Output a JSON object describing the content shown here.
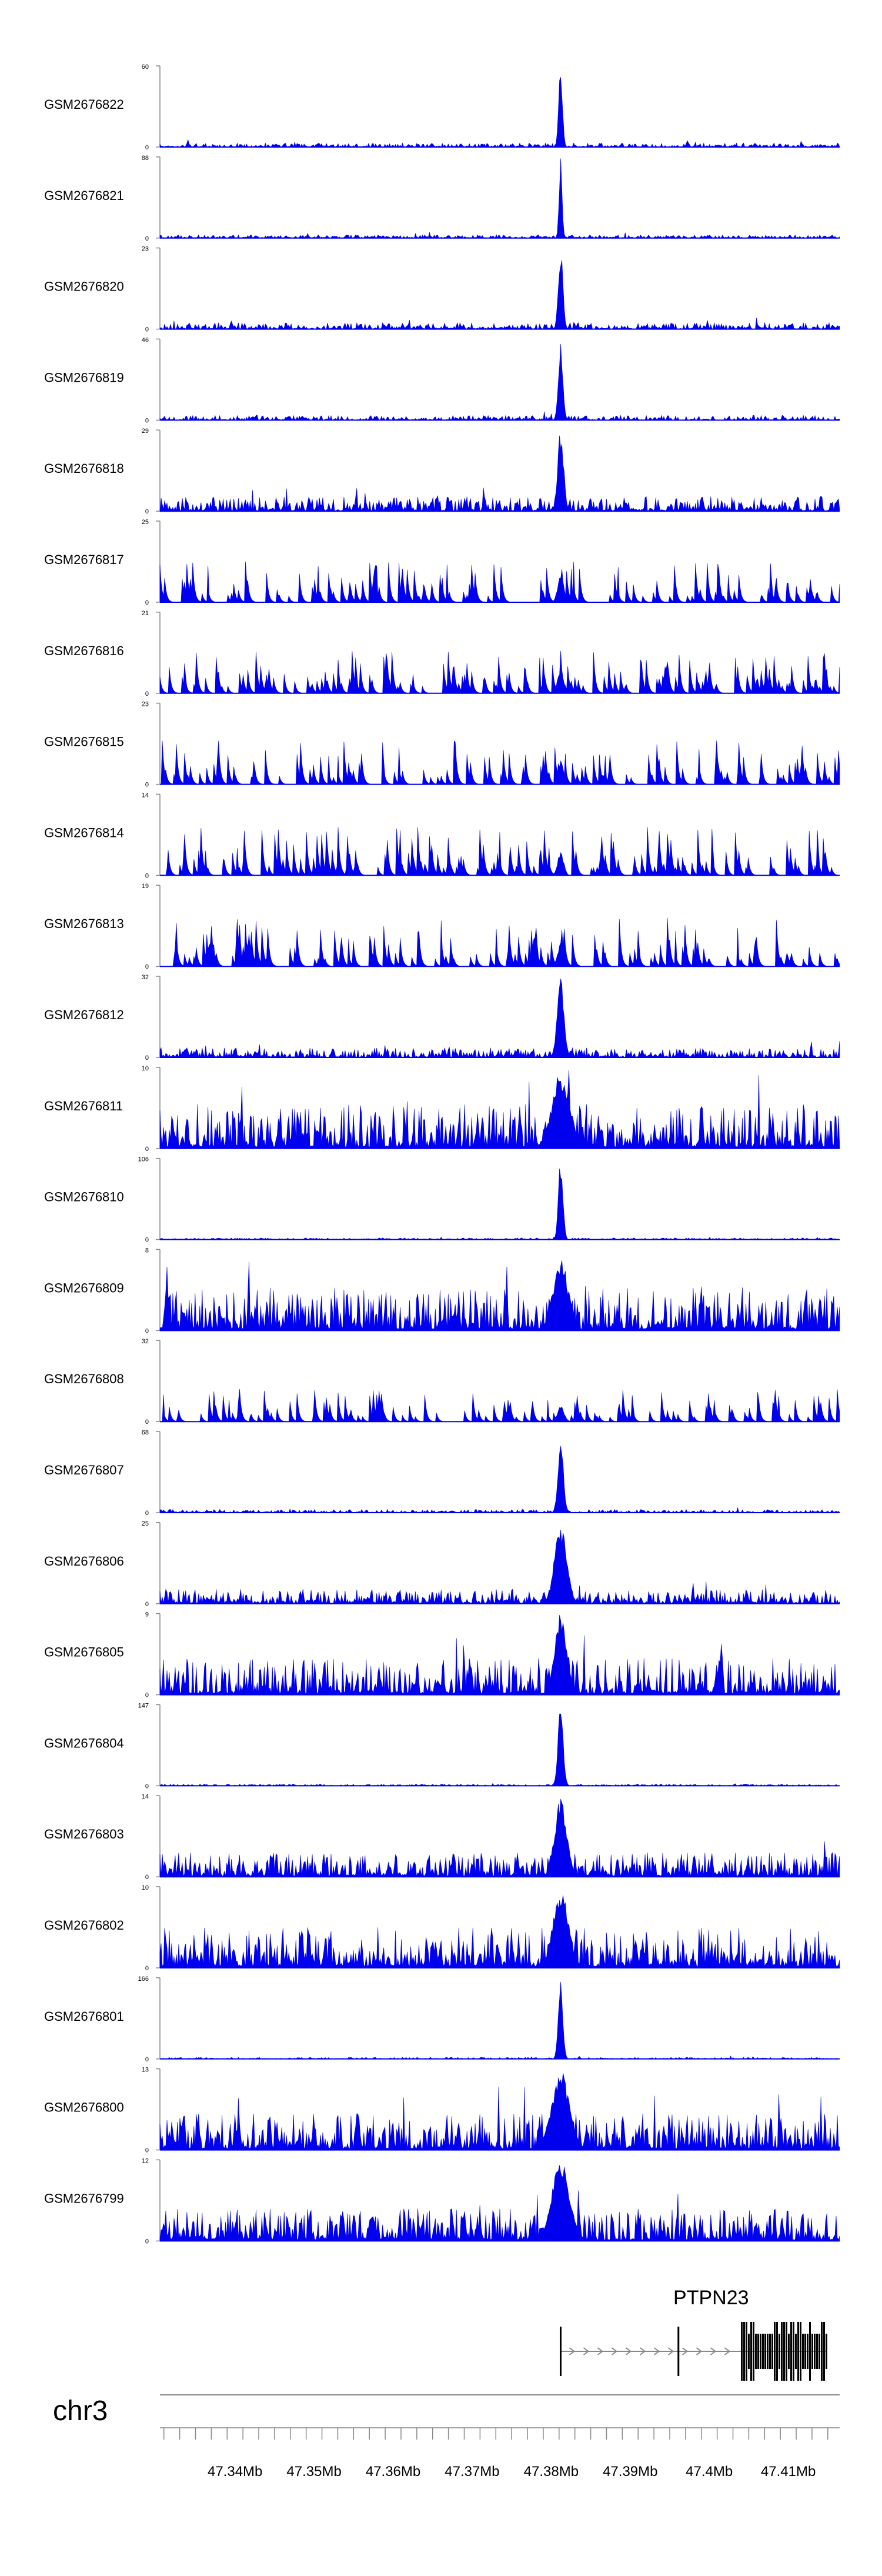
{
  "chart_data": {
    "type": "area",
    "title": "",
    "chromosome": "chr3",
    "color": "#0000ee",
    "x_axis": {
      "unit": "Mb",
      "range": [
        47.3305,
        47.4165
      ],
      "ticks": [
        {
          "v": 47.34,
          "label": "47.34Mb"
        },
        {
          "v": 47.35,
          "label": "47.35Mb"
        },
        {
          "v": 47.36,
          "label": "47.36Mb"
        },
        {
          "v": 47.37,
          "label": "47.37Mb"
        },
        {
          "v": 47.38,
          "label": "47.38Mb"
        },
        {
          "v": 47.39,
          "label": "47.39Mb"
        },
        {
          "v": 47.4,
          "label": "47.4Mb"
        },
        {
          "v": 47.41,
          "label": "47.41Mb"
        }
      ]
    },
    "gene": {
      "name": "PTPN23",
      "strand": "+",
      "start": 47.3812,
      "end": 47.4148,
      "exons": [
        [
          47.3812,
          47.3814
        ],
        [
          47.3961,
          47.3963
        ],
        [
          47.404,
          47.4148
        ]
      ]
    },
    "peak_center": 47.3812,
    "series": [
      {
        "name": "GSM2676822",
        "ymax": 60,
        "ymin_label": "0",
        "background": 0.05,
        "peak": 1.0,
        "peak_width": 0.25,
        "sparse": false,
        "seed": 22
      },
      {
        "name": "GSM2676821",
        "ymax": 88,
        "ymin_label": "0",
        "background": 0.04,
        "peak": 1.0,
        "peak_width": 0.2,
        "sparse": false,
        "seed": 21
      },
      {
        "name": "GSM2676820",
        "ymax": 23,
        "ymin_label": "0",
        "background": 0.08,
        "peak": 1.0,
        "peak_width": 0.3,
        "sparse": false,
        "seed": 20
      },
      {
        "name": "GSM2676819",
        "ymax": 46,
        "ymin_label": "0",
        "background": 0.06,
        "peak": 1.0,
        "peak_width": 0.3,
        "sparse": false,
        "seed": 19
      },
      {
        "name": "GSM2676818",
        "ymax": 29,
        "ymin_label": "0",
        "background": 0.18,
        "peak": 1.0,
        "peak_width": 0.4,
        "sparse": false,
        "seed": 18
      },
      {
        "name": "GSM2676817",
        "ymax": 25,
        "ymin_label": "0",
        "background": 0.5,
        "peak": 0.35,
        "peak_width": 0.4,
        "sparse": true,
        "seed": 17
      },
      {
        "name": "GSM2676816",
        "ymax": 21,
        "ymin_label": "0",
        "background": 0.55,
        "peak": 0.3,
        "peak_width": 0.4,
        "sparse": true,
        "seed": 16
      },
      {
        "name": "GSM2676815",
        "ymax": 23,
        "ymin_label": "0",
        "background": 0.55,
        "peak": 0.3,
        "peak_width": 0.4,
        "sparse": true,
        "seed": 15
      },
      {
        "name": "GSM2676814",
        "ymax": 14,
        "ymin_label": "0",
        "background": 0.6,
        "peak": 0.3,
        "peak_width": 0.4,
        "sparse": true,
        "seed": 14
      },
      {
        "name": "GSM2676813",
        "ymax": 19,
        "ymin_label": "0",
        "background": 0.6,
        "peak": 0.3,
        "peak_width": 0.4,
        "sparse": true,
        "seed": 13
      },
      {
        "name": "GSM2676812",
        "ymax": 32,
        "ymin_label": "0",
        "background": 0.12,
        "peak": 1.0,
        "peak_width": 0.45,
        "sparse": false,
        "seed": 12
      },
      {
        "name": "GSM2676811",
        "ymax": 10,
        "ymin_label": "0",
        "background": 0.55,
        "peak": 0.95,
        "peak_width": 1.2,
        "sparse": false,
        "seed": 11
      },
      {
        "name": "GSM2676810",
        "ymax": 106,
        "ymin_label": "0",
        "background": 0.02,
        "peak": 1.0,
        "peak_width": 0.3,
        "sparse": false,
        "seed": 10
      },
      {
        "name": "GSM2676809",
        "ymax": 8,
        "ymin_label": "0",
        "background": 0.55,
        "peak": 0.9,
        "peak_width": 1.0,
        "sparse": false,
        "seed": 9
      },
      {
        "name": "GSM2676808",
        "ymax": 32,
        "ymin_label": "0",
        "background": 0.4,
        "peak": 0.2,
        "peak_width": 0.4,
        "sparse": true,
        "seed": 8
      },
      {
        "name": "GSM2676807",
        "ymax": 68,
        "ymin_label": "0",
        "background": 0.04,
        "peak": 1.0,
        "peak_width": 0.35,
        "sparse": false,
        "seed": 7
      },
      {
        "name": "GSM2676806",
        "ymax": 25,
        "ymin_label": "0",
        "background": 0.18,
        "peak": 1.0,
        "peak_width": 0.8,
        "sparse": false,
        "seed": 6
      },
      {
        "name": "GSM2676805",
        "ymax": 9,
        "ymin_label": "0",
        "background": 0.45,
        "peak": 1.0,
        "peak_width": 0.8,
        "sparse": false,
        "seed": 5
      },
      {
        "name": "GSM2676804",
        "ymax": 147,
        "ymin_label": "0",
        "background": 0.02,
        "peak": 1.0,
        "peak_width": 0.35,
        "sparse": false,
        "seed": 4
      },
      {
        "name": "GSM2676803",
        "ymax": 14,
        "ymin_label": "0",
        "background": 0.3,
        "peak": 1.0,
        "peak_width": 0.8,
        "sparse": false,
        "seed": 3
      },
      {
        "name": "GSM2676802",
        "ymax": 10,
        "ymin_label": "0",
        "background": 0.5,
        "peak": 1.0,
        "peak_width": 1.0,
        "sparse": false,
        "seed": 2
      },
      {
        "name": "GSM2676801",
        "ymax": 166,
        "ymin_label": "0",
        "background": 0.02,
        "peak": 1.0,
        "peak_width": 0.3,
        "sparse": false,
        "seed": 1
      },
      {
        "name": "GSM2676800",
        "ymax": 13,
        "ymin_label": "0",
        "background": 0.45,
        "peak": 1.0,
        "peak_width": 1.2,
        "sparse": false,
        "seed": 30
      },
      {
        "name": "GSM2676799",
        "ymax": 12,
        "ymin_label": "0",
        "background": 0.4,
        "peak": 1.0,
        "peak_width": 1.2,
        "sparse": false,
        "seed": 31
      }
    ]
  }
}
